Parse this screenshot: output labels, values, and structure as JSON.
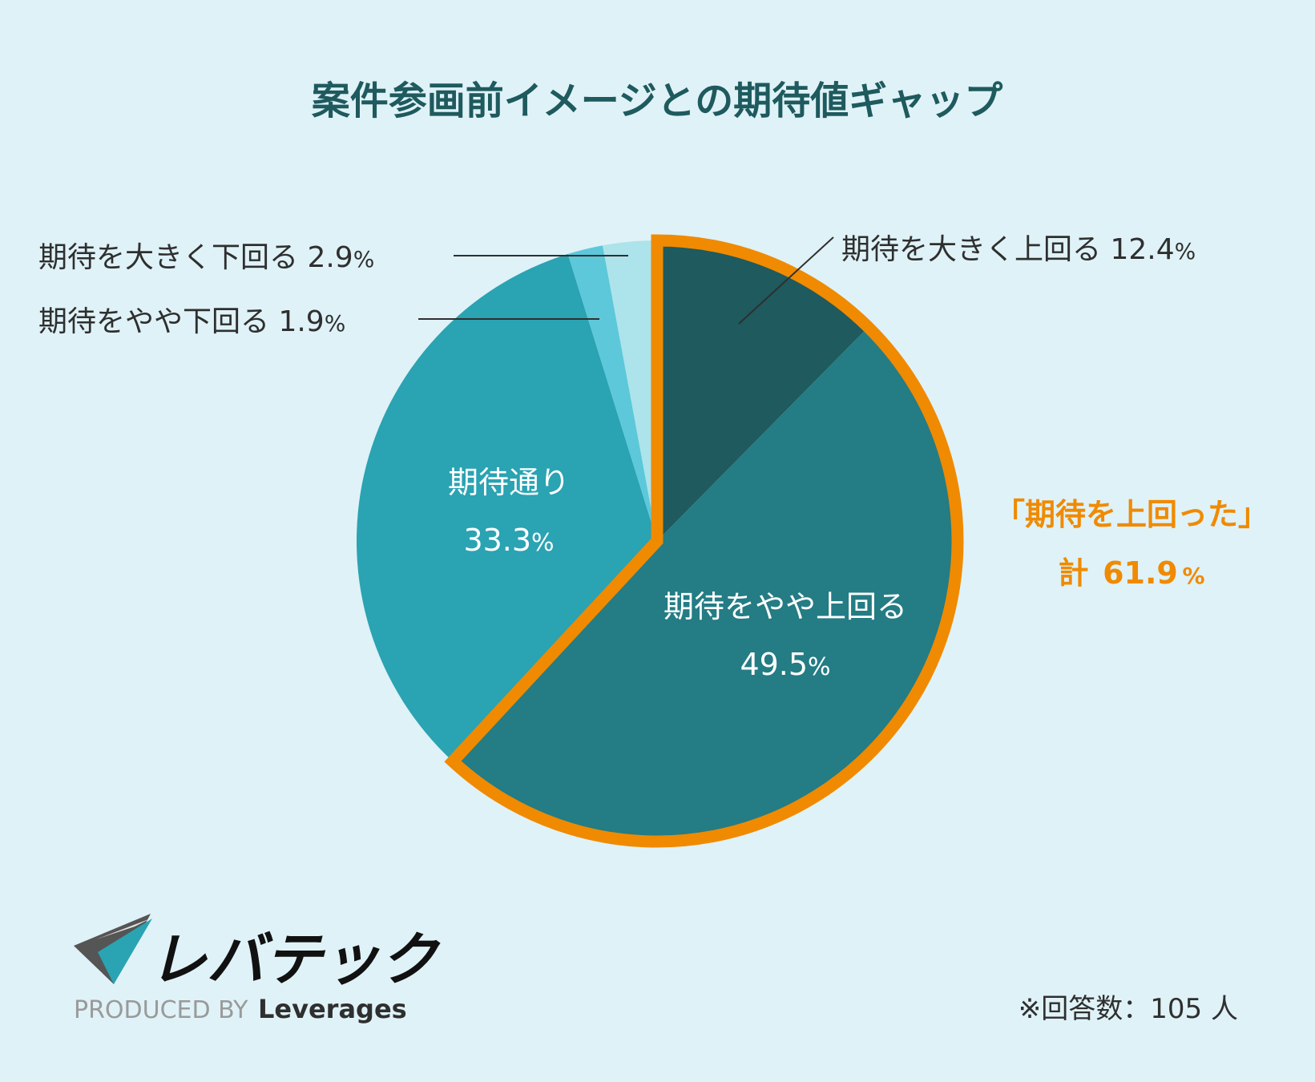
{
  "chart_data": {
    "type": "pie",
    "title": "案件参画前イメージとの期待値ギャップ",
    "start": "12 o'clock, clockwise",
    "slices": [
      {
        "label": "期待を大きく上回る",
        "value": 12.4,
        "value_text": "12.4",
        "unit": "%",
        "color": "#1e5a5e"
      },
      {
        "label": "期待をやや上回る",
        "value": 49.5,
        "value_text": "49.5",
        "unit": "%",
        "color": "#247c84"
      },
      {
        "label": "期待通り",
        "value": 33.3,
        "value_text": "33.3",
        "unit": "%",
        "color": "#2aa3b3"
      },
      {
        "label": "期待をやや下回る",
        "value": 1.9,
        "value_text": "1.9",
        "unit": "%",
        "color": "#5cc8da"
      },
      {
        "label": "期待を大きく下回る",
        "value": 2.9,
        "value_text": "2.9",
        "unit": "%",
        "color": "#ade3ea"
      }
    ],
    "highlight": {
      "label": "「期待を上回った」",
      "total_prefix": "計",
      "total_value": "61.9",
      "unit": "%",
      "color": "#f08a00"
    },
    "note": "※回答数：105 人"
  },
  "logo": {
    "name": "レバテック",
    "produced_by": "PRODUCED BY",
    "company": "Leverages"
  },
  "colors": {
    "background": "#dff2f7",
    "title": "#1e5a5e",
    "label_dark": "#2f2f2f",
    "label_light": "#ffffff"
  }
}
